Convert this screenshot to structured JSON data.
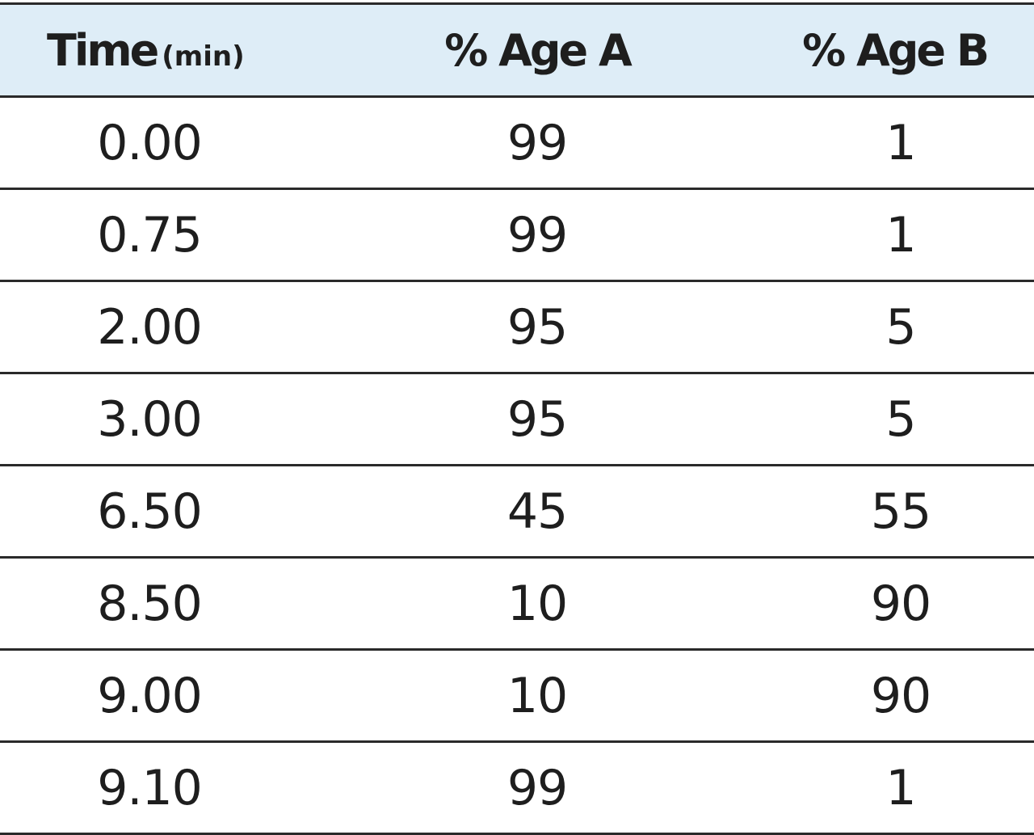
{
  "table": {
    "headers": {
      "time": "Time",
      "time_unit": "(min)",
      "age_a": "% Age A",
      "age_b": "% Age B"
    },
    "rows": [
      {
        "time": "0.00",
        "a": "99",
        "b": "1"
      },
      {
        "time": "0.75",
        "a": "99",
        "b": "1"
      },
      {
        "time": "2.00",
        "a": "95",
        "b": "5"
      },
      {
        "time": "3.00",
        "a": "95",
        "b": "5"
      },
      {
        "time": "6.50",
        "a": "45",
        "b": "55"
      },
      {
        "time": "8.50",
        "a": "10",
        "b": "90"
      },
      {
        "time": "9.00",
        "a": "10",
        "b": "90"
      },
      {
        "time": "9.10",
        "a": "99",
        "b": "1"
      }
    ]
  },
  "colors": {
    "header_background": "#deedf7",
    "rule": "#2a2a2a",
    "text": "#1e1e1e"
  }
}
